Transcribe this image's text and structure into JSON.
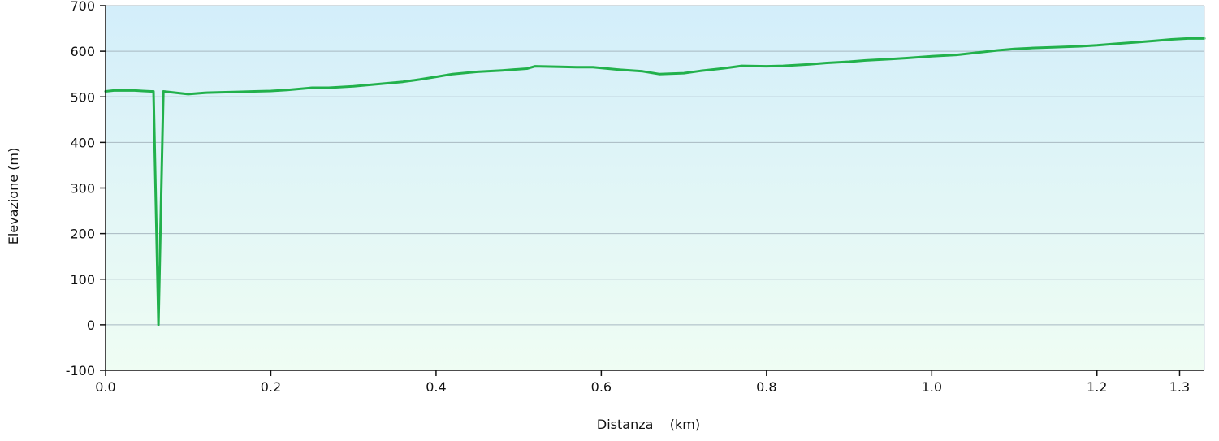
{
  "chart_data": {
    "type": "area",
    "xlabel": "Distanza    (km)",
    "ylabel": "Elevazione (m)",
    "xlim": [
      0,
      1.33
    ],
    "ylim": [
      -100,
      700
    ],
    "xticks": [
      0.0,
      0.2,
      0.4,
      0.6,
      0.8,
      1.0,
      1.2,
      1.3
    ],
    "xtick_labels": [
      "0.0",
      "0.2",
      "0.4",
      "0.6",
      "0.8",
      "1.0",
      "1.2",
      "1.3"
    ],
    "yticks": [
      700,
      600,
      500,
      400,
      300,
      200,
      100,
      0,
      -100
    ],
    "ytick_labels": [
      "700",
      "600",
      "500",
      "400",
      "300",
      "200",
      "100",
      "0",
      "-100"
    ],
    "grid": true,
    "colors": {
      "line": "#22b14c",
      "fill_top": "#d3eefa",
      "fill_bottom": "#effdf3",
      "grid": "#a8b8c2",
      "frame": "#c8d6de"
    },
    "series": [
      {
        "x": [
          0.0,
          0.01,
          0.02,
          0.035,
          0.045,
          0.055,
          0.058,
          0.064,
          0.07,
          0.08,
          0.1,
          0.12,
          0.14,
          0.16,
          0.18,
          0.2,
          0.22,
          0.25,
          0.27,
          0.3,
          0.33,
          0.36,
          0.38,
          0.4,
          0.42,
          0.45,
          0.48,
          0.51,
          0.52,
          0.55,
          0.57,
          0.59,
          0.62,
          0.65,
          0.67,
          0.7,
          0.72,
          0.75,
          0.77,
          0.8,
          0.82,
          0.85,
          0.87,
          0.9,
          0.92,
          0.95,
          0.97,
          1.0,
          1.03,
          1.06,
          1.08,
          1.1,
          1.12,
          1.15,
          1.18,
          1.2,
          1.22,
          1.25,
          1.27,
          1.29,
          1.31,
          1.33
        ],
        "y": [
          512,
          514,
          514,
          514,
          513,
          512,
          512,
          0,
          512,
          510,
          506,
          509,
          510,
          511,
          512,
          513,
          515,
          520,
          520,
          523,
          528,
          533,
          538,
          544,
          550,
          555,
          558,
          562,
          567,
          566,
          565,
          565,
          560,
          556,
          550,
          552,
          557,
          563,
          568,
          567,
          568,
          571,
          574,
          577,
          580,
          583,
          585,
          589,
          592,
          598,
          602,
          605,
          607,
          609,
          611,
          613,
          616,
          620,
          623,
          626,
          628,
          628
        ]
      }
    ]
  }
}
